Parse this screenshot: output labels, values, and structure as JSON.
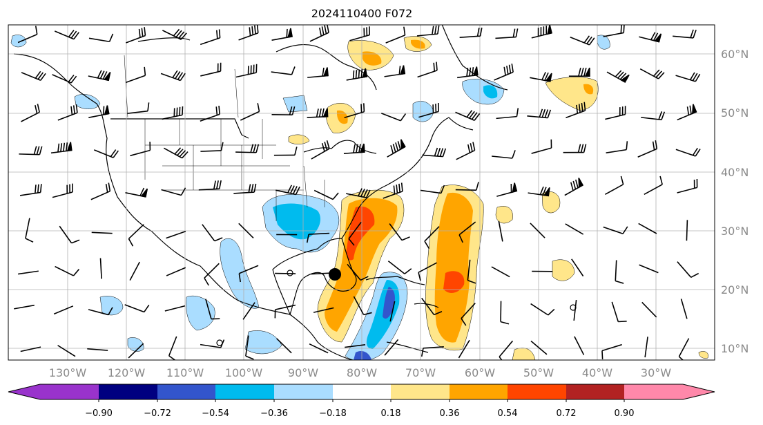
{
  "title": "2024110400 F072",
  "lon_labels": [
    "130°W",
    "120°W",
    "110°W",
    "100°W",
    "90°W",
    "80°W",
    "70°W",
    "60°W",
    "50°W",
    "40°W",
    "30°W"
  ],
  "lat_labels": [
    "60°N",
    "50°N",
    "40°N",
    "30°N",
    "20°N",
    "10°N"
  ],
  "colorbar": {
    "ticks": [
      "−0.90",
      "−0.72",
      "−0.54",
      "−0.36",
      "−0.18",
      "0.18",
      "0.36",
      "0.54",
      "0.72",
      "0.90"
    ],
    "colors": [
      "#9933cc",
      "#000080",
      "#3355cc",
      "#00bbee",
      "#aaddff",
      "#ffffff",
      "#ffe68a",
      "#ffa500",
      "#ff4500",
      "#b22222",
      "#ff88aa"
    ]
  },
  "storm_marker": "tropical-cyclone-center",
  "colors": {
    "coast": "#000000",
    "grid": "#b0b0b0",
    "label": "#8a8a8a"
  }
}
